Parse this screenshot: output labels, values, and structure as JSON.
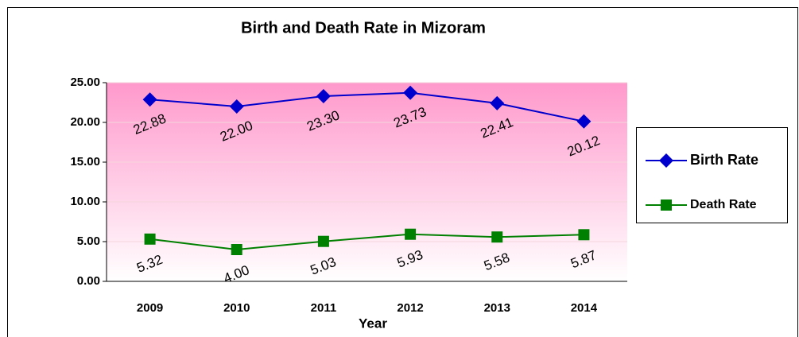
{
  "chart_data": {
    "type": "line",
    "title": "Birth and Death Rate in Mizoram",
    "x_label": "Year",
    "categories": [
      "2009",
      "2010",
      "2011",
      "2012",
      "2013",
      "2014"
    ],
    "series": [
      {
        "name": "Birth Rate",
        "color": "#0000cc",
        "marker": "diamond",
        "values": [
          22.88,
          22.0,
          23.3,
          23.73,
          22.41,
          20.12
        ],
        "value_labels": [
          "22.88",
          "22.00",
          "23.30",
          "23.73",
          "22.41",
          "20.12"
        ]
      },
      {
        "name": "Death Rate",
        "color": "#008000",
        "marker": "square",
        "values": [
          5.32,
          4.0,
          5.03,
          5.93,
          5.58,
          5.87
        ],
        "value_labels": [
          "5.32",
          "4.00",
          "5.03",
          "5.93",
          "5.58",
          "5.87"
        ]
      }
    ],
    "ylim": [
      0,
      25
    ],
    "yticks": [
      {
        "value": 0,
        "label": "0.00"
      },
      {
        "value": 5,
        "label": "5.00"
      },
      {
        "value": 10,
        "label": "10.00"
      },
      {
        "value": 15,
        "label": "15.00"
      },
      {
        "value": 20,
        "label": "20.00"
      },
      {
        "value": 25,
        "label": "25.00"
      }
    ],
    "grid": true,
    "legend": "right"
  }
}
